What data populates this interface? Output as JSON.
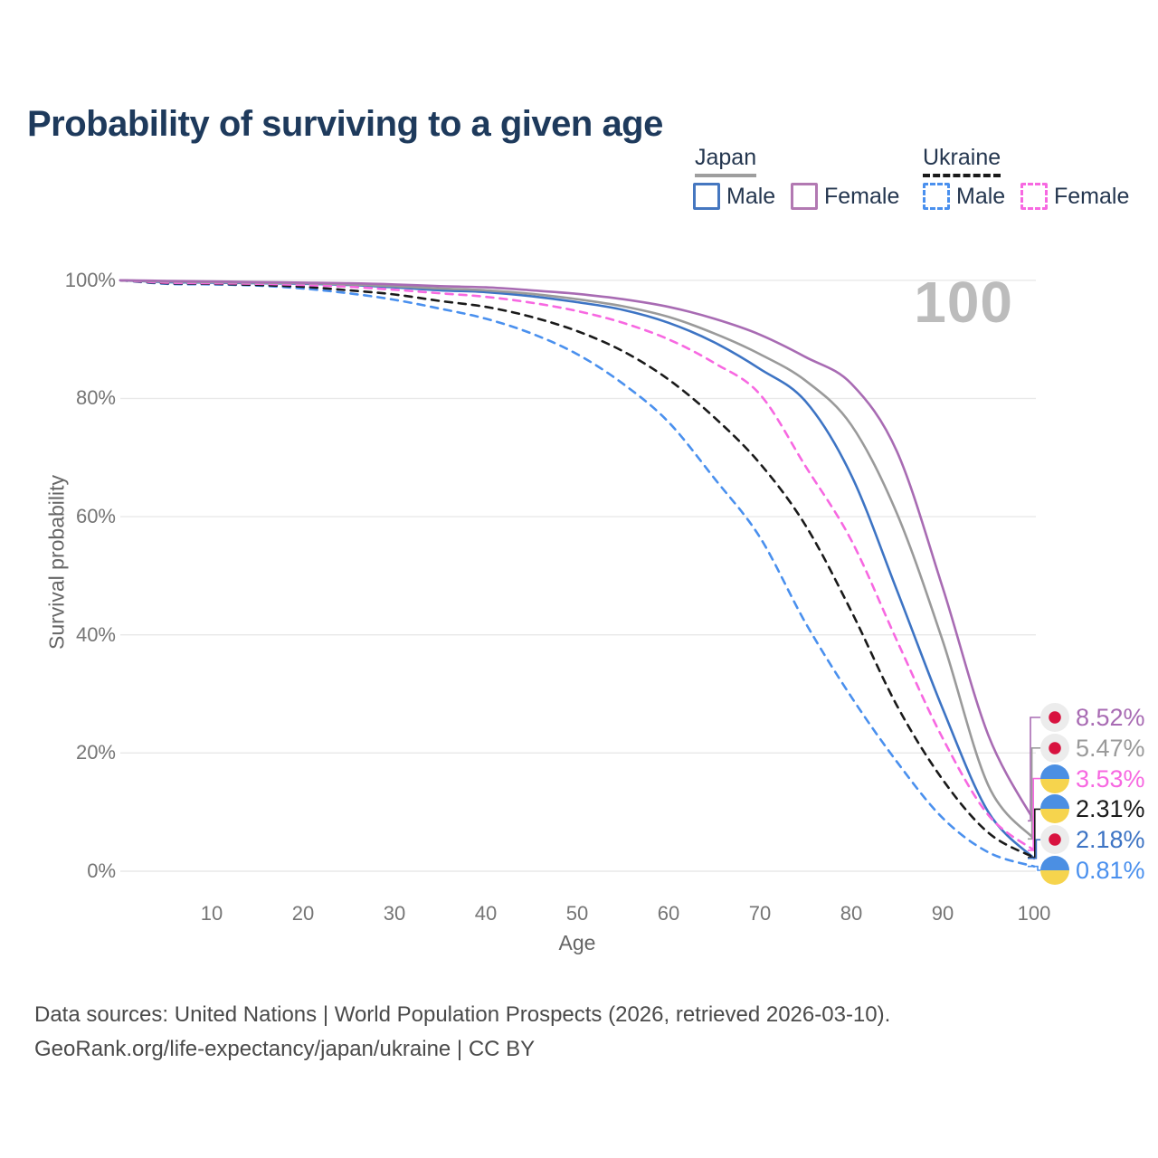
{
  "title": "Probability of surviving to a given age",
  "legend": {
    "japan": {
      "label": "Japan",
      "male": "Male",
      "female": "Female"
    },
    "ukraine": {
      "label": "Ukraine",
      "male": "Male",
      "female": "Female"
    }
  },
  "annotation": {
    "age_marker": "100"
  },
  "axes": {
    "y_label": "Survival probability",
    "x_label": "Age",
    "y_ticks": [
      {
        "label": "100%",
        "value": 100
      },
      {
        "label": "80%",
        "value": 80
      },
      {
        "label": "60%",
        "value": 60
      },
      {
        "label": "40%",
        "value": 40
      },
      {
        "label": "20%",
        "value": 20
      },
      {
        "label": "0%",
        "value": 0
      }
    ],
    "x_ticks": [
      {
        "label": "10",
        "value": 10
      },
      {
        "label": "20",
        "value": 20
      },
      {
        "label": "30",
        "value": 30
      },
      {
        "label": "40",
        "value": 40
      },
      {
        "label": "50",
        "value": 50
      },
      {
        "label": "60",
        "value": 60
      },
      {
        "label": "70",
        "value": 70
      },
      {
        "label": "80",
        "value": 80
      },
      {
        "label": "90",
        "value": 90
      },
      {
        "label": "100",
        "value": 100
      }
    ]
  },
  "colors": {
    "title_text": "#1e3a5c",
    "legend_text": "#24364f",
    "japan_male": "#4577c0",
    "japan_female": "#b279b2",
    "japan_total": "#9a9a9a",
    "ukraine_male": "#4a90ee",
    "ukraine_female": "#f768e1",
    "ukraine_total": "#1a1a1a",
    "japan_header_underline": "#9e9e9e",
    "ukraine_header_underline": "#1a1a1a",
    "gridline": "#e9e9e9",
    "annotation_gray": "#bcbcbc",
    "japan_flag_bg": "#ececec",
    "japan_flag_dot": "#d8123f",
    "ukraine_flag_top": "#4b8fe3",
    "ukraine_flag_bottom": "#f6d44d"
  },
  "chart_data": {
    "type": "line",
    "title": "Probability of surviving to a given age",
    "xlabel": "Age",
    "ylabel": "Survival probability",
    "xlim": [
      0,
      100
    ],
    "ylim": [
      0,
      100
    ],
    "grid": "horizontal",
    "legend_position": "top-right",
    "x": [
      0,
      5,
      10,
      15,
      20,
      25,
      30,
      35,
      40,
      45,
      50,
      55,
      60,
      65,
      70,
      75,
      80,
      85,
      90,
      95,
      100
    ],
    "series": [
      {
        "id": "japan-female",
        "name": "Japan Female",
        "country": "Japan",
        "flag": "japan",
        "color": "#a86bb3",
        "dash": false,
        "end_label": "8.52%",
        "end_value": 8.52,
        "values": [
          100,
          99.9,
          99.8,
          99.7,
          99.6,
          99.5,
          99.3,
          99.0,
          98.8,
          98.3,
          97.7,
          96.8,
          95.5,
          93.5,
          90.8,
          87.0,
          82.5,
          71.0,
          48.0,
          23.0,
          8.52
        ]
      },
      {
        "id": "japan-total",
        "name": "Japan Total",
        "country": "Japan",
        "flag": "japan",
        "color": "#9a9a9a",
        "dash": false,
        "end_label": "5.47%",
        "end_value": 5.47,
        "values": [
          100,
          99.8,
          99.7,
          99.6,
          99.5,
          99.3,
          99.0,
          98.6,
          98.3,
          97.7,
          96.8,
          95.6,
          93.8,
          91.0,
          87.5,
          83.0,
          75.5,
          60.5,
          39.0,
          14.5,
          5.47
        ]
      },
      {
        "id": "ukraine-female",
        "name": "Ukraine Female",
        "country": "Ukraine",
        "flag": "ukraine",
        "color": "#f768e1",
        "dash": true,
        "end_label": "3.53%",
        "end_value": 3.53,
        "values": [
          100,
          99.6,
          99.5,
          99.4,
          99.2,
          98.9,
          98.4,
          97.8,
          97.2,
          96.2,
          94.8,
          92.8,
          90.0,
          86.0,
          80.7,
          68.5,
          56.0,
          39.0,
          22.5,
          9.5,
          3.53
        ]
      },
      {
        "id": "ukraine-total",
        "name": "Ukraine Total",
        "country": "Ukraine",
        "flag": "ukraine",
        "color": "#1a1a1a",
        "dash": true,
        "end_label": "2.31%",
        "end_value": 2.31,
        "values": [
          100,
          99.5,
          99.4,
          99.2,
          98.9,
          98.3,
          97.6,
          96.5,
          95.5,
          93.8,
          91.4,
          88.0,
          83.2,
          76.8,
          69.0,
          58.5,
          44.0,
          28.0,
          15.5,
          6.5,
          2.31
        ]
      },
      {
        "id": "japan-male",
        "name": "Japan Male",
        "country": "Japan",
        "flag": "japan",
        "color": "#3d74c4",
        "dash": false,
        "end_label": "2.18%",
        "end_value": 2.18,
        "values": [
          100,
          99.7,
          99.6,
          99.5,
          99.4,
          99.2,
          98.8,
          98.3,
          98.0,
          97.3,
          96.3,
          95.0,
          92.8,
          89.5,
          85.0,
          79.5,
          67.0,
          47.5,
          27.5,
          10.0,
          2.18
        ]
      },
      {
        "id": "ukraine-male",
        "name": "Ukraine Male",
        "country": "Ukraine",
        "flag": "ukraine",
        "color": "#4a90ee",
        "dash": true,
        "end_label": "0.81%",
        "end_value": 0.81,
        "values": [
          100,
          99.4,
          99.3,
          99.1,
          98.6,
          97.8,
          96.7,
          95.2,
          93.5,
          91.0,
          87.5,
          82.5,
          76.0,
          66.5,
          56.5,
          42.0,
          29.5,
          18.5,
          9.0,
          3.2,
          0.81
        ]
      }
    ]
  },
  "footer": {
    "line1": "Data sources: United Nations | World Population Prospects (2026, retrieved 2026-03-10).",
    "line2": "GeoRank.org/life-expectancy/japan/ukraine | CC BY"
  }
}
